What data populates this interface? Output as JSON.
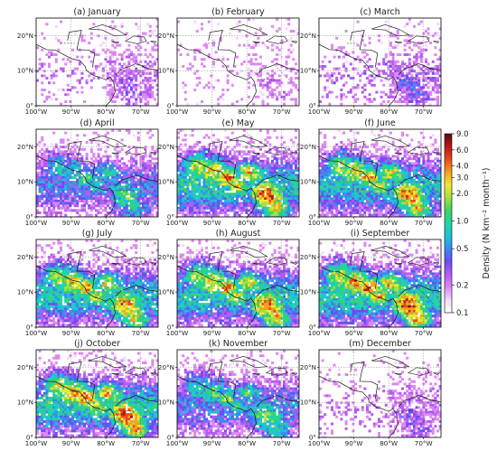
{
  "chart_data": {
    "type": "heatmap",
    "xlim": [
      -100,
      -65
    ],
    "ylim": [
      0,
      25
    ],
    "grid": true,
    "x_tick_labels": [
      "100°W",
      "90°W",
      "80°W",
      "70°W"
    ],
    "y_tick_labels": [
      "0°",
      "10°N",
      "20°N"
    ],
    "colorbar": {
      "label": "Density (N km⁻² month⁻¹)",
      "scale": "log",
      "range": [
        0.1,
        9.0
      ],
      "tick_labels": [
        "9.0",
        "6.0",
        "4.0",
        "3.0",
        "2.0",
        "1.0",
        "0.5",
        "0.2",
        "0.1"
      ],
      "colors": [
        "#ffffff",
        "#f2d9f8",
        "#dd88f2",
        "#b45cf0",
        "#6a4ff2",
        "#3a8af0",
        "#22c0d8",
        "#22d6a0",
        "#3ad36a",
        "#a6e042",
        "#f2e830",
        "#f5a020",
        "#e84a1a",
        "#b81818",
        "#5a0a0a"
      ]
    },
    "panels": [
      {
        "title": "(a) January",
        "intensity": 0.2,
        "activity": "low; concentrated in the southeast (Colombia / Venezuela)"
      },
      {
        "title": "(b) February",
        "intensity": 0.1,
        "activity": "very low; sparse"
      },
      {
        "title": "(c) March",
        "intensity": 0.28,
        "activity": "low; eastern Pacific band and Colombia"
      },
      {
        "title": "(d) April",
        "intensity": 0.55,
        "activity": "moderate; Pacific band and Colombia hotspot"
      },
      {
        "title": "(e) May",
        "intensity": 0.85,
        "activity": "high; widespread, Central America hotspots"
      },
      {
        "title": "(f) June",
        "intensity": 0.8,
        "activity": "high; widespread"
      },
      {
        "title": "(g) July",
        "intensity": 0.8,
        "activity": "high; widespread"
      },
      {
        "title": "(h) August",
        "intensity": 0.82,
        "activity": "high; widespread"
      },
      {
        "title": "(i) September",
        "intensity": 0.88,
        "activity": "high; hotspot near 80°W, 13°N"
      },
      {
        "title": "(j) October",
        "intensity": 0.85,
        "activity": "high; widespread"
      },
      {
        "title": "(k) November",
        "intensity": 0.6,
        "activity": "moderate"
      },
      {
        "title": "(m) December",
        "intensity": 0.25,
        "activity": "low; southeast"
      }
    ]
  }
}
